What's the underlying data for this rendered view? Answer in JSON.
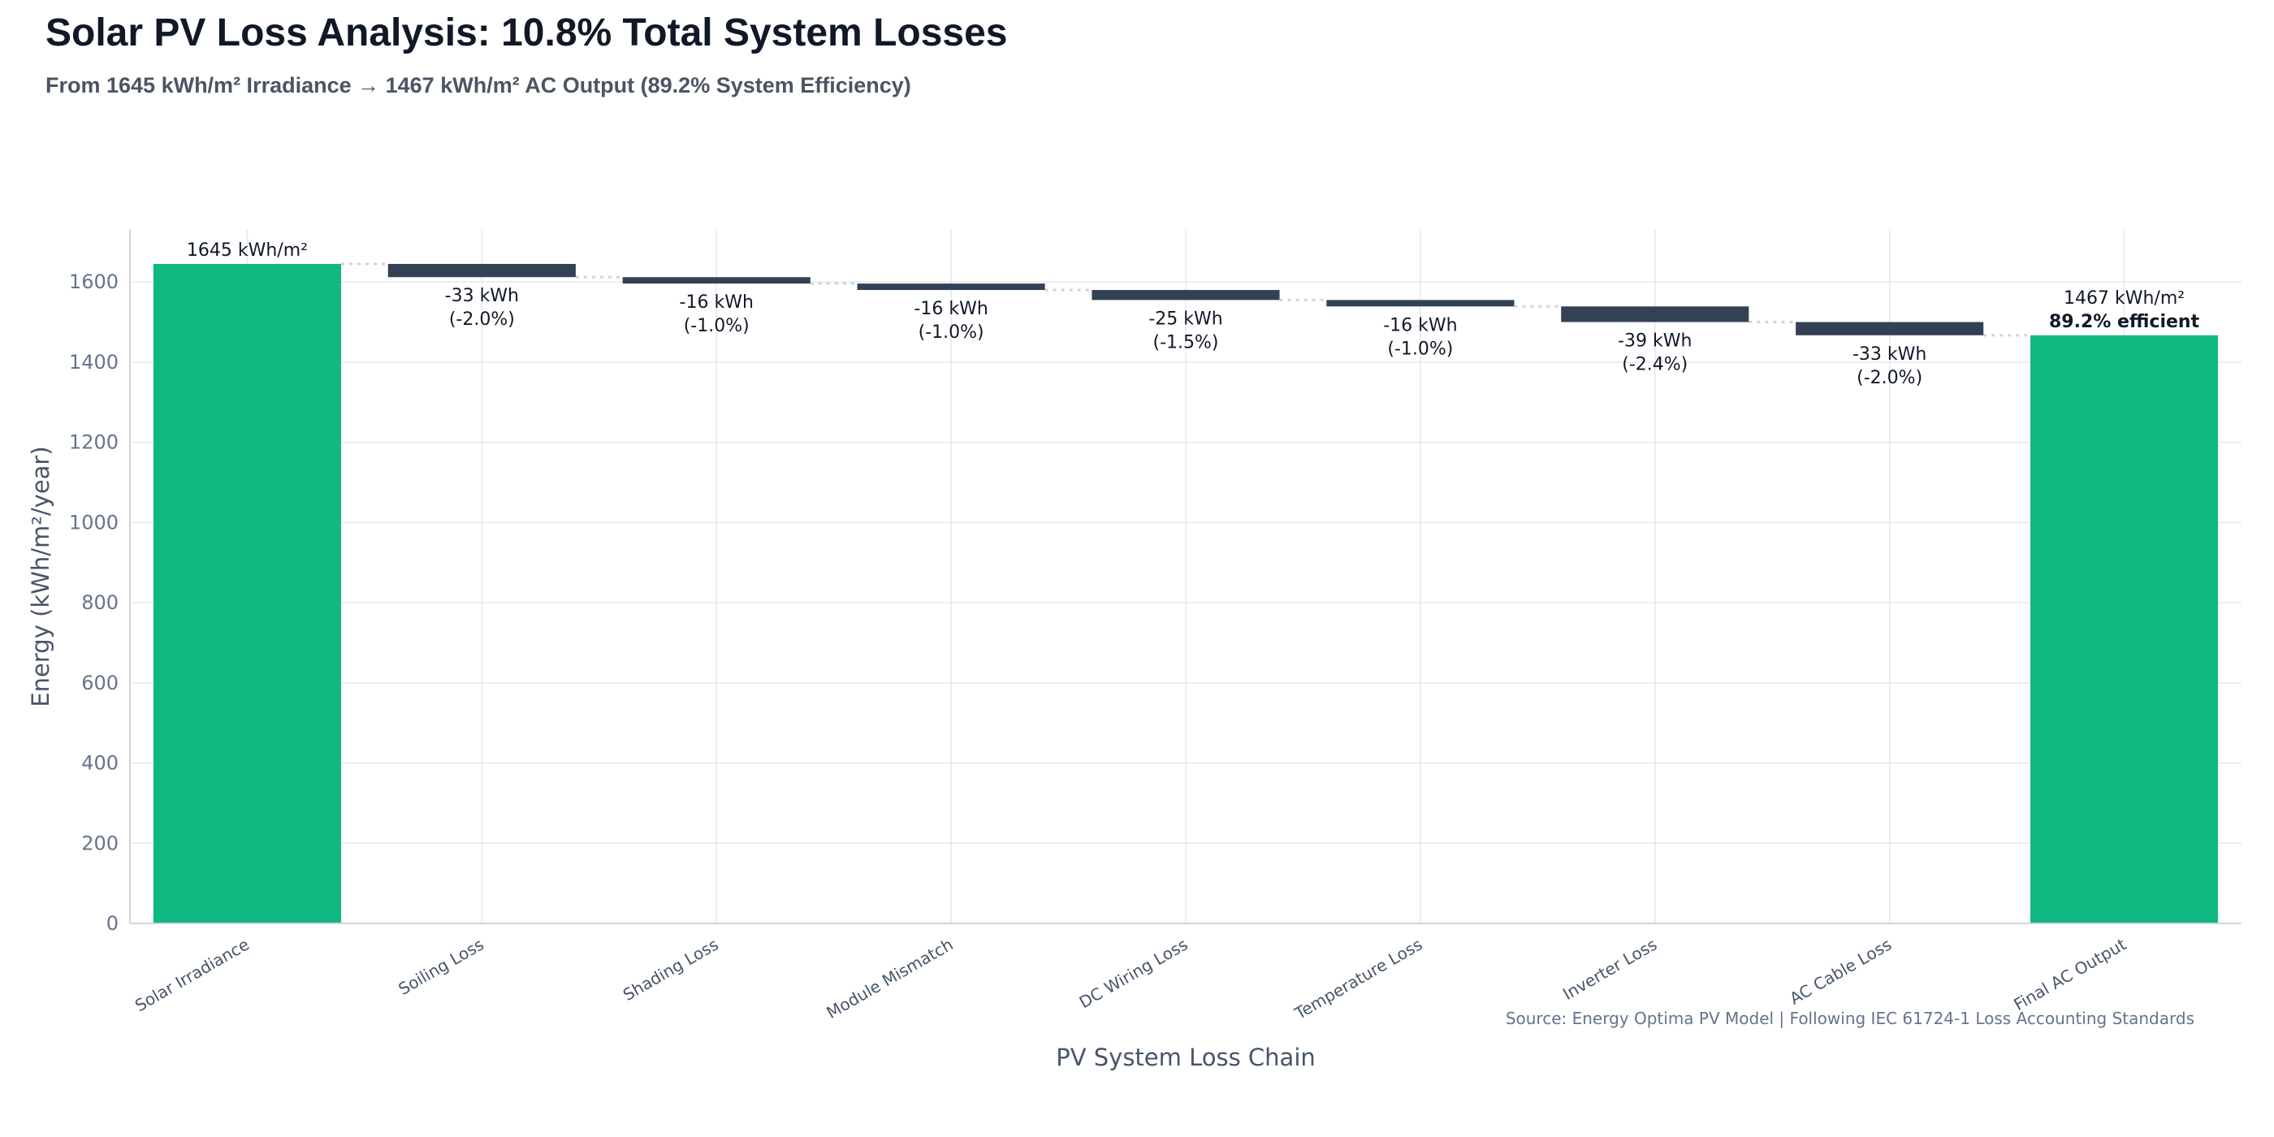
{
  "title": "Solar PV Loss Analysis: 10.8% Total System Losses",
  "subtitle": "From 1645 kWh/m² Irradiance → 1467 kWh/m² AC Output (89.2% System Efficiency)",
  "source": "Source: Energy Optima PV Model | Following IEC 61724-1 Loss Accounting Standards",
  "colors": {
    "total": "#10b981",
    "loss": "#334155",
    "connector": "#cbd5e1",
    "grid": "#e5e7eb",
    "axis": "#cbd5e1"
  },
  "chart_data": {
    "type": "bar",
    "subtype": "waterfall",
    "xlabel": "PV System Loss Chain",
    "ylabel": "Energy (kWh/m²/year)",
    "ylim": [
      0,
      1730
    ],
    "yticks": [
      0,
      200,
      400,
      600,
      800,
      1000,
      1200,
      1400,
      1600
    ],
    "grid": true,
    "categories": [
      "Solar Irradiance",
      "Soiling Loss",
      "Shading Loss",
      "Module Mismatch",
      "DC Wiring Loss",
      "Temperature Loss",
      "Inverter Loss",
      "AC Cable Loss",
      "Final AC Output"
    ],
    "values": [
      1645,
      -33,
      -16,
      -16,
      -25,
      -16,
      -39,
      -33,
      1467
    ],
    "kinds": [
      "total",
      "loss",
      "loss",
      "loss",
      "loss",
      "loss",
      "loss",
      "loss",
      "total"
    ],
    "labels": [
      [
        "1645 kWh/m²"
      ],
      [
        "-33 kWh",
        "(-2.0%)"
      ],
      [
        "-16 kWh",
        "(-1.0%)"
      ],
      [
        "-16 kWh",
        "(-1.0%)"
      ],
      [
        "-25 kWh",
        "(-1.5%)"
      ],
      [
        "-16 kWh",
        "(-1.0%)"
      ],
      [
        "-39 kWh",
        "(-2.4%)"
      ],
      [
        "-33 kWh",
        "(-2.0%)"
      ],
      [
        "1467 kWh/m²",
        "89.2% efficient"
      ]
    ]
  }
}
